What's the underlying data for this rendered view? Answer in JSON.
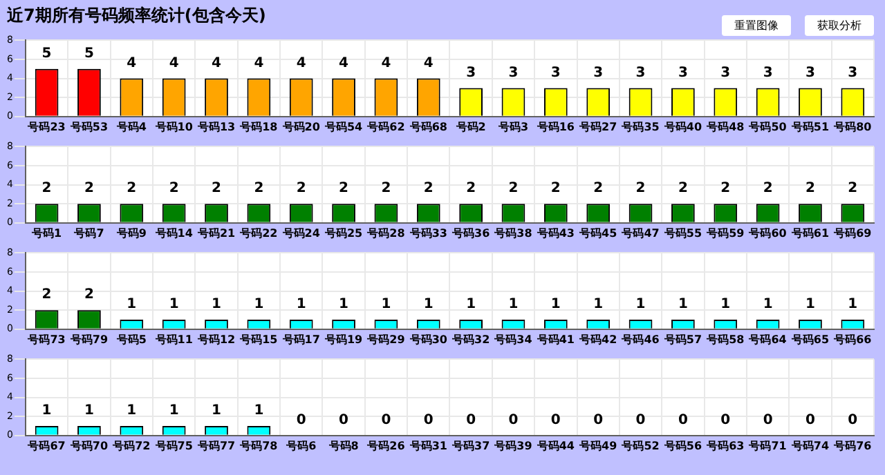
{
  "chart_data": [
    {
      "type": "bar",
      "title": "近7期所有号码频率统计(包含今天)",
      "annotations": [
        "重置图像",
        "获取分析"
      ],
      "categories": [
        "号码23",
        "号码53",
        "号码4",
        "号码10",
        "号码13",
        "号码18",
        "号码20",
        "号码54",
        "号码62",
        "号码68",
        "号码2",
        "号码3",
        "号码16",
        "号码27",
        "号码35",
        "号码40",
        "号码48",
        "号码50",
        "号码51",
        "号码80"
      ],
      "values": [
        5,
        5,
        4,
        4,
        4,
        4,
        4,
        4,
        4,
        4,
        3,
        3,
        3,
        3,
        3,
        3,
        3,
        3,
        3,
        3
      ],
      "colors": [
        "#ff0000",
        "#ff0000",
        "#ffa500",
        "#ffa500",
        "#ffa500",
        "#ffa500",
        "#ffa500",
        "#ffa500",
        "#ffa500",
        "#ffa500",
        "#ffff00",
        "#ffff00",
        "#ffff00",
        "#ffff00",
        "#ffff00",
        "#ffff00",
        "#ffff00",
        "#ffff00",
        "#ffff00",
        "#ffff00"
      ],
      "ylim": [
        0,
        8
      ],
      "yticks": [
        0,
        2,
        4,
        6,
        8
      ],
      "grid": true,
      "data_labels": true
    },
    {
      "type": "bar",
      "categories": [
        "号码1",
        "号码7",
        "号码9",
        "号码14",
        "号码21",
        "号码22",
        "号码24",
        "号码25",
        "号码28",
        "号码33",
        "号码36",
        "号码38",
        "号码43",
        "号码45",
        "号码47",
        "号码55",
        "号码59",
        "号码60",
        "号码61",
        "号码69"
      ],
      "values": [
        2,
        2,
        2,
        2,
        2,
        2,
        2,
        2,
        2,
        2,
        2,
        2,
        2,
        2,
        2,
        2,
        2,
        2,
        2,
        2
      ],
      "colors": [
        "#008000",
        "#008000",
        "#008000",
        "#008000",
        "#008000",
        "#008000",
        "#008000",
        "#008000",
        "#008000",
        "#008000",
        "#008000",
        "#008000",
        "#008000",
        "#008000",
        "#008000",
        "#008000",
        "#008000",
        "#008000",
        "#008000",
        "#008000"
      ],
      "ylim": [
        0,
        8
      ],
      "yticks": [
        0,
        2,
        4,
        6,
        8
      ],
      "grid": true,
      "data_labels": true
    },
    {
      "type": "bar",
      "categories": [
        "号码73",
        "号码79",
        "号码5",
        "号码11",
        "号码12",
        "号码15",
        "号码17",
        "号码19",
        "号码29",
        "号码30",
        "号码32",
        "号码34",
        "号码41",
        "号码42",
        "号码46",
        "号码57",
        "号码58",
        "号码64",
        "号码65",
        "号码66"
      ],
      "values": [
        2,
        2,
        1,
        1,
        1,
        1,
        1,
        1,
        1,
        1,
        1,
        1,
        1,
        1,
        1,
        1,
        1,
        1,
        1,
        1
      ],
      "colors": [
        "#008000",
        "#008000",
        "#00ffff",
        "#00ffff",
        "#00ffff",
        "#00ffff",
        "#00ffff",
        "#00ffff",
        "#00ffff",
        "#00ffff",
        "#00ffff",
        "#00ffff",
        "#00ffff",
        "#00ffff",
        "#00ffff",
        "#00ffff",
        "#00ffff",
        "#00ffff",
        "#00ffff",
        "#00ffff"
      ],
      "ylim": [
        0,
        8
      ],
      "yticks": [
        0,
        2,
        4,
        6,
        8
      ],
      "grid": true,
      "data_labels": true
    },
    {
      "type": "bar",
      "categories": [
        "号码67",
        "号码70",
        "号码72",
        "号码75",
        "号码77",
        "号码78",
        "号码6",
        "号码8",
        "号码26",
        "号码31",
        "号码37",
        "号码39",
        "号码44",
        "号码49",
        "号码52",
        "号码56",
        "号码63",
        "号码71",
        "号码74",
        "号码76"
      ],
      "values": [
        1,
        1,
        1,
        1,
        1,
        1,
        0,
        0,
        0,
        0,
        0,
        0,
        0,
        0,
        0,
        0,
        0,
        0,
        0,
        0
      ],
      "colors": [
        "#00ffff",
        "#00ffff",
        "#00ffff",
        "#00ffff",
        "#00ffff",
        "#00ffff",
        "#00ffff",
        "#00ffff",
        "#00ffff",
        "#00ffff",
        "#00ffff",
        "#00ffff",
        "#00ffff",
        "#00ffff",
        "#00ffff",
        "#00ffff",
        "#00ffff",
        "#00ffff",
        "#00ffff",
        "#00ffff"
      ],
      "ylim": [
        0,
        8
      ],
      "yticks": [
        0,
        2,
        4,
        6,
        8
      ],
      "grid": true,
      "data_labels": true
    }
  ]
}
